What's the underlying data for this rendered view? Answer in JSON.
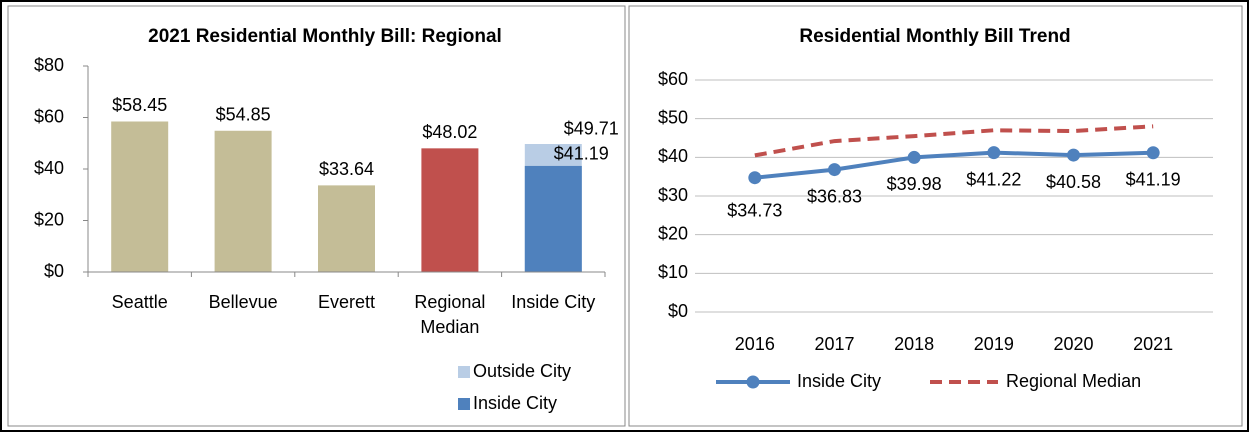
{
  "chart_data": [
    {
      "type": "bar",
      "title": "2021 Residential Monthly Bill: Regional",
      "categories": [
        "Seattle",
        "Bellevue",
        "Everett",
        "Regional Median",
        "Inside City"
      ],
      "values": [
        58.45,
        54.85,
        33.64,
        48.02,
        null
      ],
      "value_labels": [
        "$58.45",
        "$54.85",
        "$33.64",
        "$48.02",
        null
      ],
      "colors": [
        "#c4bd97",
        "#c4bd97",
        "#c4bd97",
        "#c0504d",
        null
      ],
      "series": [
        {
          "name": "Outside City",
          "color": "#b9cde5",
          "values": [
            null,
            null,
            null,
            null,
            49.71
          ],
          "value_labels": [
            null,
            null,
            null,
            null,
            "$49.71"
          ]
        },
        {
          "name": "Inside City",
          "color": "#4f81bd",
          "values": [
            null,
            null,
            null,
            null,
            41.19
          ],
          "value_labels": [
            null,
            null,
            null,
            null,
            "$41.19"
          ]
        }
      ],
      "ylim": [
        0,
        80
      ],
      "yticks": [
        {
          "value": 0,
          "label": "$0"
        },
        {
          "value": 20,
          "label": "$20"
        },
        {
          "value": 40,
          "label": "$40"
        },
        {
          "value": 60,
          "label": "$60"
        },
        {
          "value": 80,
          "label": "$80"
        }
      ],
      "grid": false,
      "legend": "bottom-right"
    },
    {
      "type": "line",
      "title": "Residential Monthly Bill Trend",
      "categories": [
        "2016",
        "2017",
        "2018",
        "2019",
        "2020",
        "2021"
      ],
      "series": [
        {
          "name": "Inside City",
          "color": "#4f81bd",
          "values": [
            34.73,
            36.83,
            39.98,
            41.22,
            40.58,
            41.19
          ],
          "value_labels": [
            "$34.73",
            "$36.83",
            "$39.98",
            "$41.22",
            "$40.58",
            "$41.19"
          ],
          "marker": true
        },
        {
          "name": "Regional Median",
          "color": "#c0504d",
          "values": [
            40.5,
            44.2,
            45.5,
            47.0,
            46.8,
            48.02
          ],
          "dashed": true
        }
      ],
      "ylim": [
        0,
        60
      ],
      "yticks": [
        {
          "value": 0,
          "label": "$0"
        },
        {
          "value": 10,
          "label": "$10"
        },
        {
          "value": 20,
          "label": "$20"
        },
        {
          "value": 30,
          "label": "$30"
        },
        {
          "value": 40,
          "label": "$40"
        },
        {
          "value": 50,
          "label": "$50"
        },
        {
          "value": 60,
          "label": "$60"
        }
      ],
      "grid": true,
      "legend": "bottom"
    }
  ]
}
